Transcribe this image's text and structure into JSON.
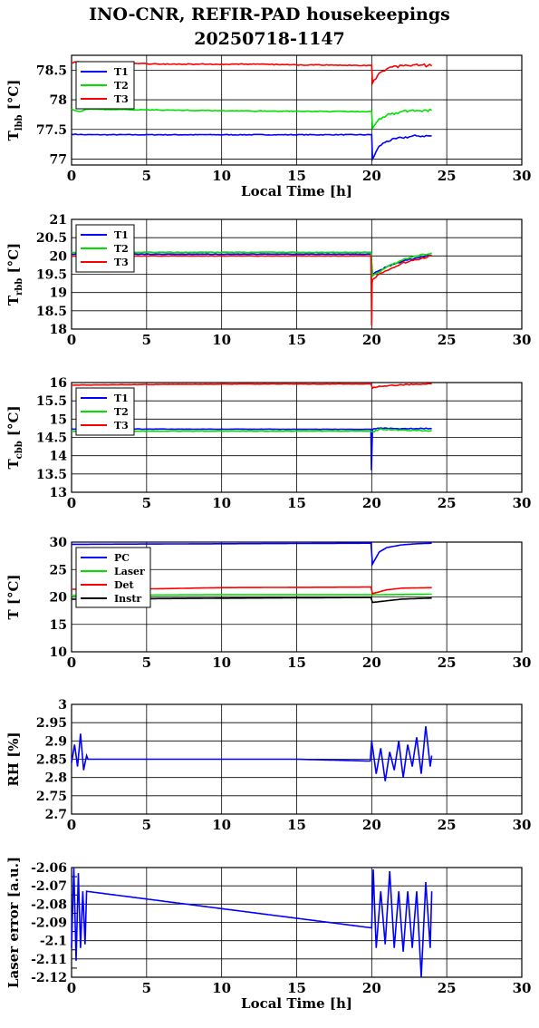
{
  "title_line1": "INO-CNR, REFIR-PAD housekeepings",
  "title_line2": "20250718-1147",
  "colors": {
    "blue": "#0000ff",
    "green": "#00e000",
    "red": "#ff0000",
    "black": "#000000",
    "grid": "#000000"
  },
  "chart_data": [
    {
      "type": "line",
      "id": "tlbb",
      "ylabel": "T",
      "ylabel_sub": "lbb",
      "ylabel_unit": "[°C]",
      "xlabel": "Local Time [h]",
      "xlim": [
        0,
        30
      ],
      "ylim": [
        76.9,
        78.75
      ],
      "yticks": [
        77,
        77.5,
        78,
        78.5
      ],
      "ytick_labels": [
        "77",
        "77.5",
        "78",
        "78.5"
      ],
      "xticks": [
        0,
        5,
        10,
        15,
        20,
        25,
        30
      ],
      "grid": true,
      "legend": "top-left",
      "series": [
        {
          "name": "T1",
          "color": "#0000ff",
          "x": [
            0,
            1,
            20,
            20.05,
            20.5,
            21,
            22,
            23,
            24
          ],
          "y": [
            77.42,
            77.41,
            77.41,
            77.0,
            77.22,
            77.3,
            77.36,
            77.39,
            77.39
          ],
          "noise": 0.02
        },
        {
          "name": "T2",
          "color": "#00e000",
          "x": [
            0,
            0.2,
            0.5,
            1,
            5,
            12,
            20,
            20.05,
            20.5,
            21,
            22,
            23,
            24
          ],
          "y": [
            77.85,
            77.82,
            77.8,
            77.84,
            77.83,
            77.81,
            77.8,
            77.52,
            77.68,
            77.74,
            77.8,
            77.82,
            77.82
          ],
          "noise": 0.02
        },
        {
          "name": "T3",
          "color": "#ff0000",
          "x": [
            0,
            0.2,
            6,
            12,
            18,
            20,
            20.05,
            20.5,
            21,
            22,
            23,
            24
          ],
          "y": [
            78.62,
            78.64,
            78.6,
            78.6,
            78.58,
            78.58,
            78.28,
            78.45,
            78.52,
            78.58,
            78.6,
            78.57
          ],
          "noise": 0.025
        }
      ]
    },
    {
      "type": "line",
      "id": "trbb",
      "ylabel": "T",
      "ylabel_sub": "rbb",
      "ylabel_unit": "[°C]",
      "xlabel": "",
      "xlim": [
        0,
        30
      ],
      "ylim": [
        18,
        21
      ],
      "yticks": [
        18,
        18.5,
        19,
        19.5,
        20,
        20.5,
        21
      ],
      "ytick_labels": [
        "18",
        "18.5",
        "19",
        "19.5",
        "20",
        "20.5",
        "21"
      ],
      "xticks": [
        0,
        5,
        10,
        15,
        20,
        25,
        30
      ],
      "grid": true,
      "legend": "top-left",
      "series": [
        {
          "name": "T1",
          "color": "#0000ff",
          "x": [
            0,
            19.95,
            20.05,
            20.5,
            21,
            22,
            23,
            24
          ],
          "y": [
            20.05,
            20.05,
            19.5,
            19.6,
            19.7,
            19.85,
            19.95,
            20.02
          ],
          "noise": 0.02
        },
        {
          "name": "T2",
          "color": "#00e000",
          "x": [
            0,
            19.95,
            20.05,
            20.5,
            21,
            22,
            23,
            24
          ],
          "y": [
            20.1,
            20.1,
            19.45,
            19.55,
            19.7,
            19.88,
            20.0,
            20.08
          ],
          "noise": 0.02
        },
        {
          "name": "T3",
          "color": "#ff0000",
          "x": [
            0,
            19.95,
            20.0,
            20.02,
            20.05,
            20.5,
            21,
            22,
            23,
            24
          ],
          "y": [
            20.0,
            20.0,
            18.1,
            19.2,
            19.35,
            19.5,
            19.6,
            19.8,
            19.9,
            20.0
          ],
          "noise": 0.02
        }
      ]
    },
    {
      "type": "line",
      "id": "tcbb",
      "ylabel": "T",
      "ylabel_sub": "cbb",
      "ylabel_unit": "[°C]",
      "xlabel": "",
      "xlim": [
        0,
        30
      ],
      "ylim": [
        13,
        16
      ],
      "yticks": [
        13,
        13.5,
        14,
        14.5,
        15,
        15.5,
        16
      ],
      "ytick_labels": [
        "13",
        "13.5",
        "14",
        "14.5",
        "15",
        "15.5",
        "16"
      ],
      "xticks": [
        0,
        5,
        10,
        15,
        20,
        25,
        30
      ],
      "grid": true,
      "legend": "top-left",
      "series": [
        {
          "name": "T1",
          "color": "#0000ff",
          "x": [
            0,
            19.9,
            19.95,
            19.98,
            20.05,
            20.5,
            22,
            24
          ],
          "y": [
            14.73,
            14.72,
            14.72,
            13.6,
            14.72,
            14.75,
            14.74,
            14.74
          ],
          "noise": 0.015
        },
        {
          "name": "T2",
          "color": "#00e000",
          "x": [
            0,
            12,
            19.95,
            20.05,
            20.5,
            22,
            24
          ],
          "y": [
            14.67,
            14.67,
            14.67,
            14.65,
            14.72,
            14.7,
            14.68
          ],
          "noise": 0.015
        },
        {
          "name": "T3",
          "color": "#ff0000",
          "x": [
            0,
            6,
            12,
            19.95,
            20.05,
            20.5,
            22,
            24
          ],
          "y": [
            15.93,
            15.95,
            15.96,
            15.96,
            15.85,
            15.9,
            15.94,
            15.96
          ],
          "noise": 0.015
        }
      ]
    },
    {
      "type": "line",
      "id": "temps",
      "ylabel": "T [°C]",
      "ylabel_sub": "",
      "ylabel_unit": "",
      "xlabel": "",
      "xlim": [
        0,
        30
      ],
      "ylim": [
        10,
        30
      ],
      "yticks": [
        10,
        15,
        20,
        25,
        30
      ],
      "ytick_labels": [
        "10",
        "15",
        "20",
        "25",
        "30"
      ],
      "xticks": [
        0,
        5,
        10,
        15,
        20,
        25,
        30
      ],
      "grid": true,
      "legend": "top-left",
      "series": [
        {
          "name": "PC",
          "color": "#0000ff",
          "x": [
            0,
            10,
            19.95,
            20.05,
            20.5,
            21,
            22,
            23,
            24
          ],
          "y": [
            29.6,
            29.7,
            29.8,
            26.0,
            28.2,
            29.0,
            29.5,
            29.7,
            29.8
          ],
          "noise": 0.0
        },
        {
          "name": "Laser",
          "color": "#00e000",
          "x": [
            0,
            10,
            20,
            24
          ],
          "y": [
            20.3,
            20.4,
            20.4,
            20.5
          ],
          "noise": 0.0
        },
        {
          "name": "Det",
          "color": "#ff0000",
          "x": [
            0,
            6,
            10,
            19.95,
            20.05,
            21,
            22,
            24
          ],
          "y": [
            21.4,
            21.5,
            21.7,
            21.8,
            20.6,
            21.3,
            21.6,
            21.7
          ],
          "noise": 0.0
        },
        {
          "name": "Instr",
          "color": "#000000",
          "x": [
            0,
            12,
            19.95,
            20.05,
            21,
            22,
            24
          ],
          "y": [
            19.6,
            19.8,
            19.9,
            19.0,
            19.3,
            19.6,
            19.8
          ],
          "noise": 0.0
        }
      ]
    },
    {
      "type": "line",
      "id": "rh",
      "ylabel": "RH [%]",
      "ylabel_sub": "",
      "ylabel_unit": "",
      "xlabel": "",
      "xlim": [
        0,
        30
      ],
      "ylim": [
        2.7,
        3
      ],
      "yticks": [
        2.7,
        2.75,
        2.8,
        2.85,
        2.9,
        2.95,
        3
      ],
      "ytick_labels": [
        "2.7",
        "2.75",
        "2.8",
        "2.85",
        "2.9",
        "2.95",
        "3"
      ],
      "xticks": [
        0,
        5,
        10,
        15,
        20,
        25,
        30
      ],
      "grid": true,
      "legend": "none",
      "series": [
        {
          "name": "",
          "color": "#0000ff",
          "x": [
            0,
            0.2,
            0.4,
            0.6,
            0.8,
            1.0,
            1.1,
            5,
            10,
            15,
            19.9,
            20.0,
            20.3,
            20.6,
            20.9,
            21.2,
            21.5,
            21.8,
            22.1,
            22.4,
            22.7,
            23.0,
            23.3,
            23.6,
            23.9,
            24.0
          ],
          "y": [
            2.84,
            2.89,
            2.83,
            2.92,
            2.82,
            2.86,
            2.85,
            2.85,
            2.85,
            2.85,
            2.845,
            2.9,
            2.81,
            2.88,
            2.79,
            2.87,
            2.82,
            2.9,
            2.8,
            2.89,
            2.83,
            2.91,
            2.81,
            2.94,
            2.83,
            2.86
          ],
          "noise": 0.0
        }
      ]
    },
    {
      "type": "line",
      "id": "laser",
      "ylabel": "Laser error [a.u.]",
      "ylabel_sub": "",
      "ylabel_unit": "",
      "xlabel": "Local Time [h]",
      "xlim": [
        0,
        30
      ],
      "ylim": [
        -2.12,
        -2.06
      ],
      "yticks": [
        -2.12,
        -2.11,
        -2.1,
        -2.09,
        -2.08,
        -2.07,
        -2.06
      ],
      "ytick_labels": [
        "-2.12",
        "-2.11",
        "-2.1",
        "-2.09",
        "-2.08",
        "-2.07",
        "-2.06"
      ],
      "yticks_minor": [
        -2.115,
        -2.105,
        -2.095,
        -2.085,
        -2.075,
        -2.065
      ],
      "ytick_minor_labels": [
        "",
        "",
        "",
        "",
        "",
        ""
      ],
      "xticks": [
        0,
        5,
        10,
        15,
        20,
        25,
        30
      ],
      "grid": true,
      "legend": "none",
      "series": [
        {
          "name": "",
          "color": "#0000ff",
          "x": [
            0,
            0.15,
            0.3,
            0.45,
            0.6,
            0.75,
            0.9,
            1.0,
            20.0,
            20.1,
            20.3,
            20.6,
            20.9,
            21.2,
            21.5,
            21.8,
            22.1,
            22.4,
            22.7,
            23.0,
            23.3,
            23.6,
            23.9,
            24.0
          ],
          "y": [
            -2.104,
            -2.06,
            -2.111,
            -2.063,
            -2.104,
            -2.073,
            -2.102,
            -2.073,
            -2.093,
            -2.061,
            -2.104,
            -2.073,
            -2.102,
            -2.062,
            -2.104,
            -2.073,
            -2.106,
            -2.073,
            -2.104,
            -2.073,
            -2.12,
            -2.068,
            -2.104,
            -2.073
          ],
          "noise": 0.0
        }
      ]
    }
  ]
}
